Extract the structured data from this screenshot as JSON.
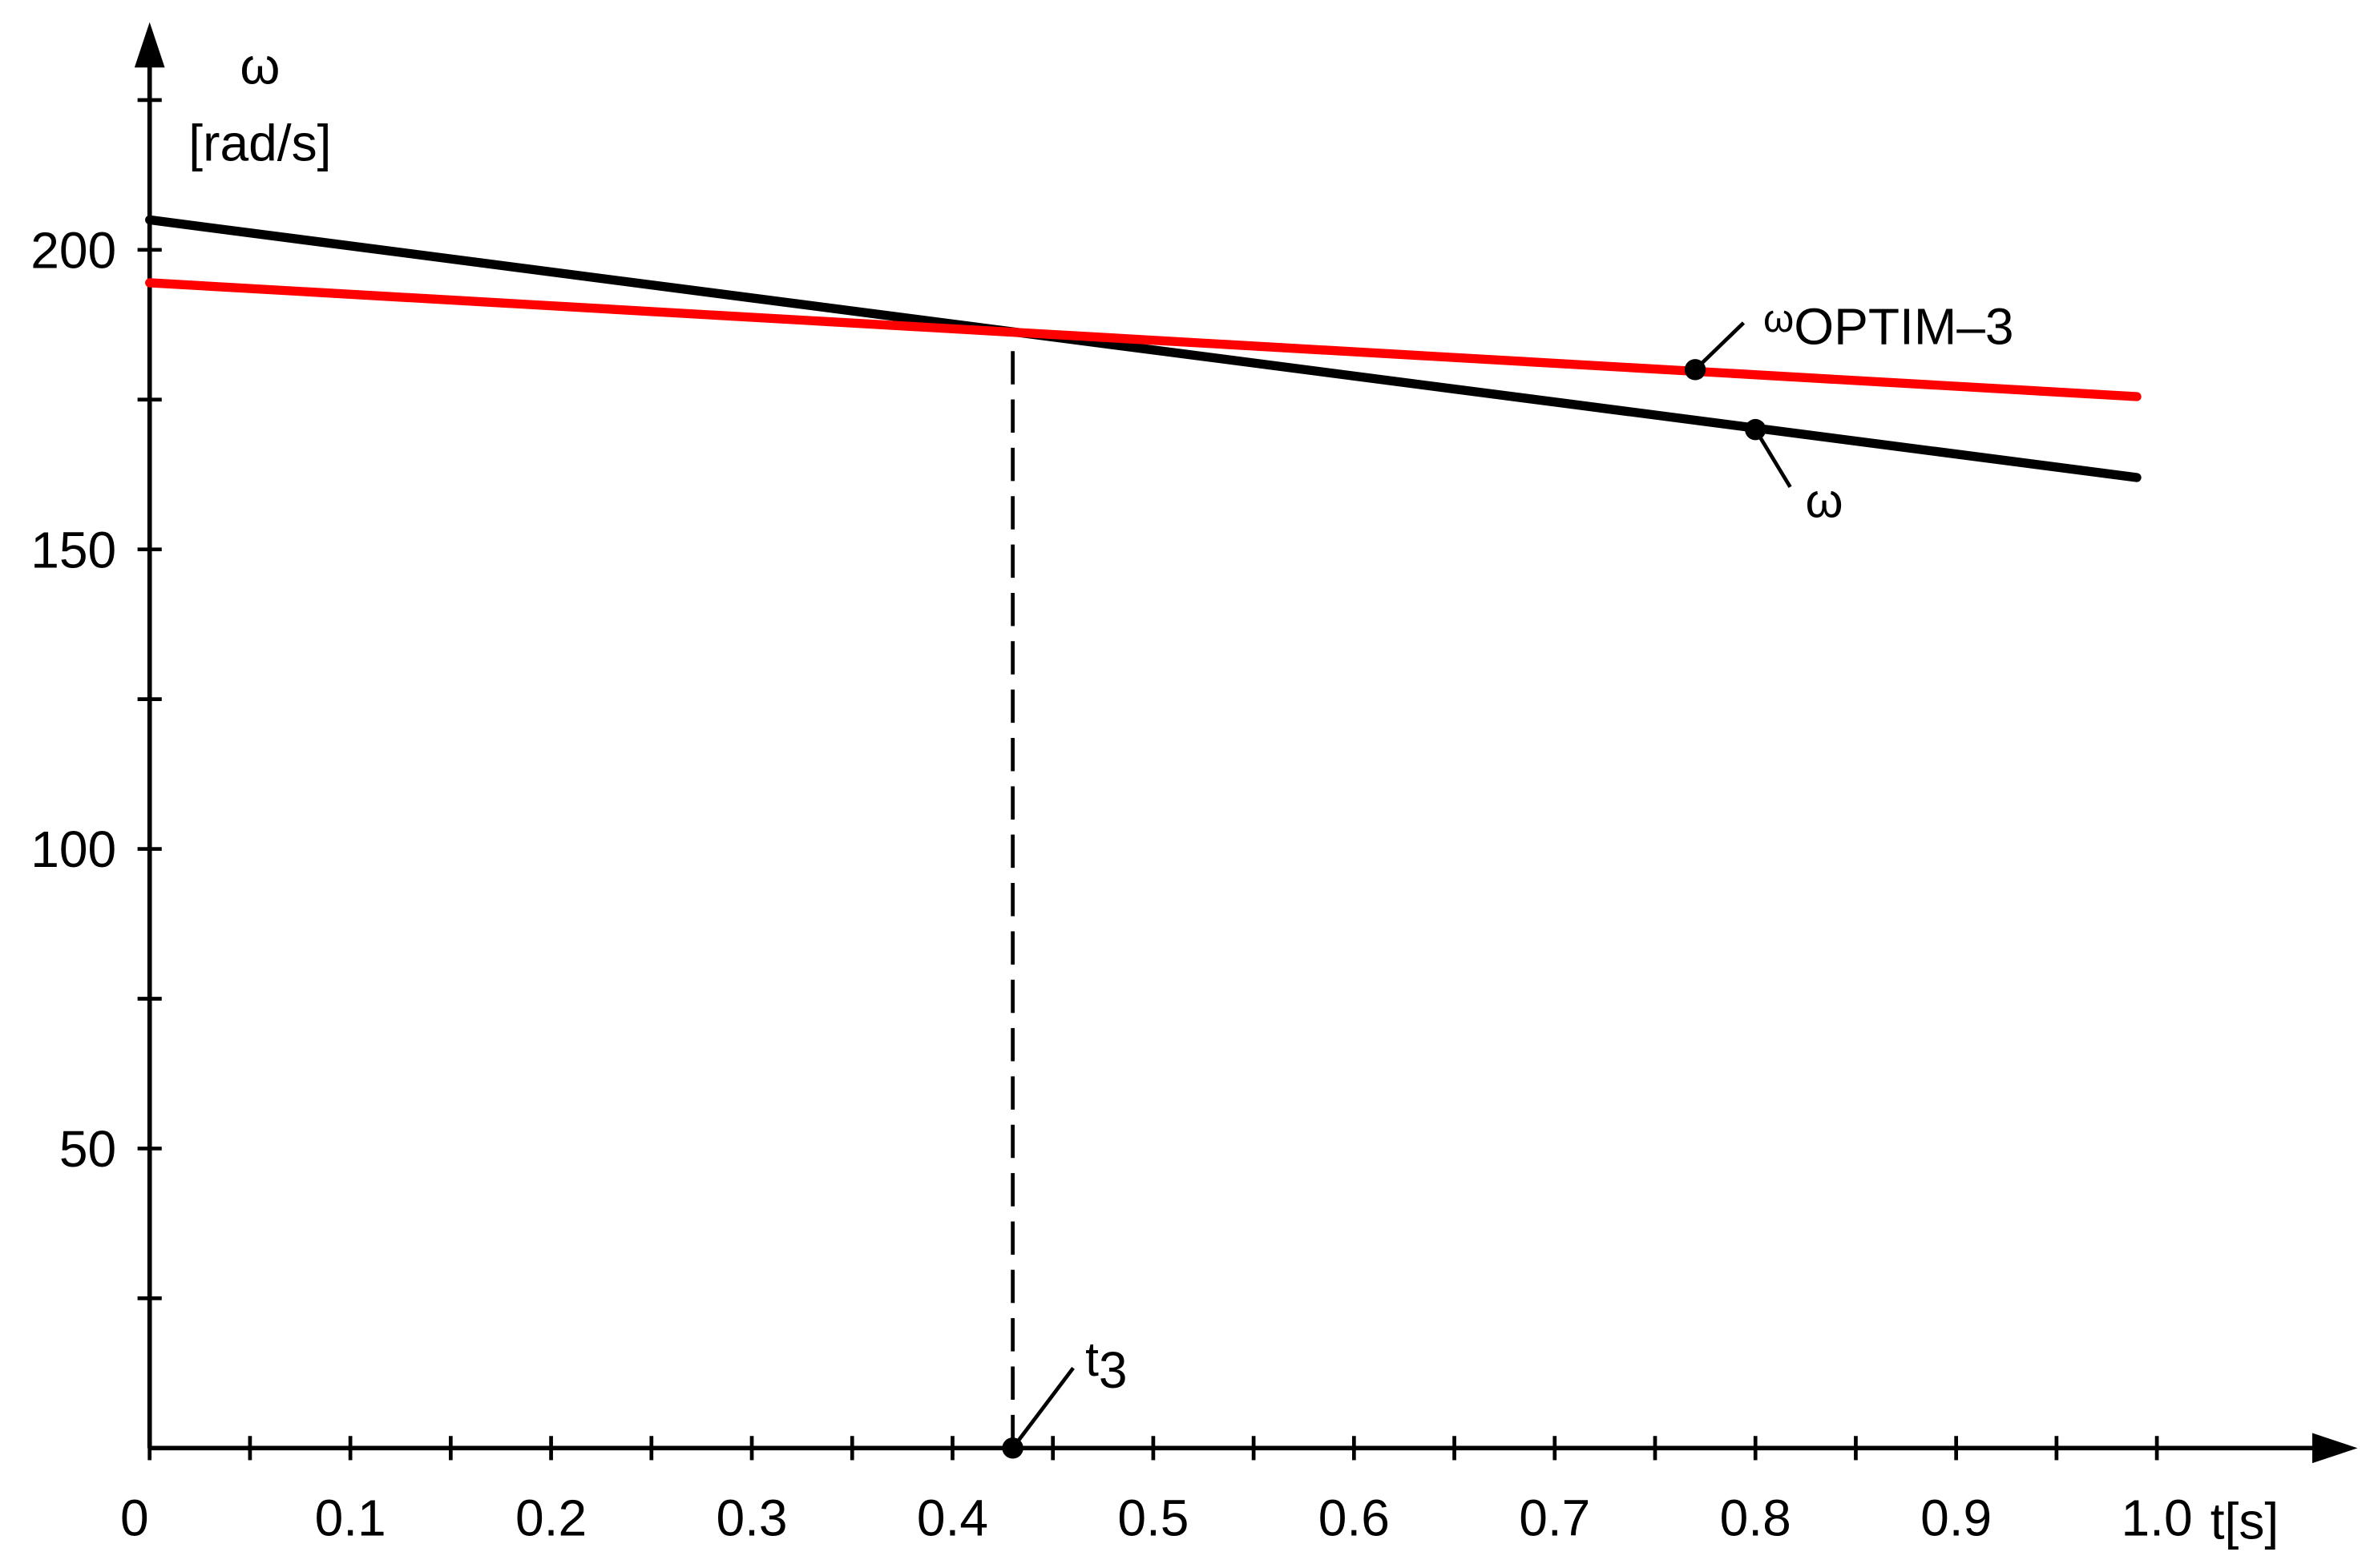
{
  "chart_data": {
    "type": "line",
    "y_label_symbol": "ω",
    "y_label_unit": "[rad/s]",
    "x_label": "t[s]",
    "xlim": [
      0,
      1.1
    ],
    "ylim": [
      0,
      238
    ],
    "xticks": [
      {
        "value": 0,
        "label": "0"
      },
      0.1,
      0.2,
      0.3,
      0.4,
      0.5,
      0.6,
      0.7,
      0.8,
      0.9,
      {
        "value": 1,
        "label": "1.0"
      }
    ],
    "xminorticks": [
      0.05,
      0.15,
      0.25,
      0.35,
      0.45,
      0.55,
      0.65,
      0.75,
      0.85,
      0.95
    ],
    "yticks": [
      50,
      100,
      150,
      200
    ],
    "yminorticks": [
      25,
      75,
      125,
      175,
      225
    ],
    "series": [
      {
        "color": "#000000",
        "x": [
          0,
          0.99
        ],
        "values": [
          205,
          162
        ]
      },
      {
        "color": "#ff0000",
        "x": [
          0,
          0.99
        ],
        "values": [
          194.5,
          175.5
        ]
      }
    ],
    "annotations": [
      {
        "label": "ω",
        "subscript": "OPTIM–3",
        "x": 0.77,
        "y": 180
      },
      {
        "label": "ω",
        "x": 0.8,
        "y": 170
      },
      {
        "label": "t",
        "subscript": "3",
        "x": 0.43,
        "y": 0
      }
    ]
  }
}
